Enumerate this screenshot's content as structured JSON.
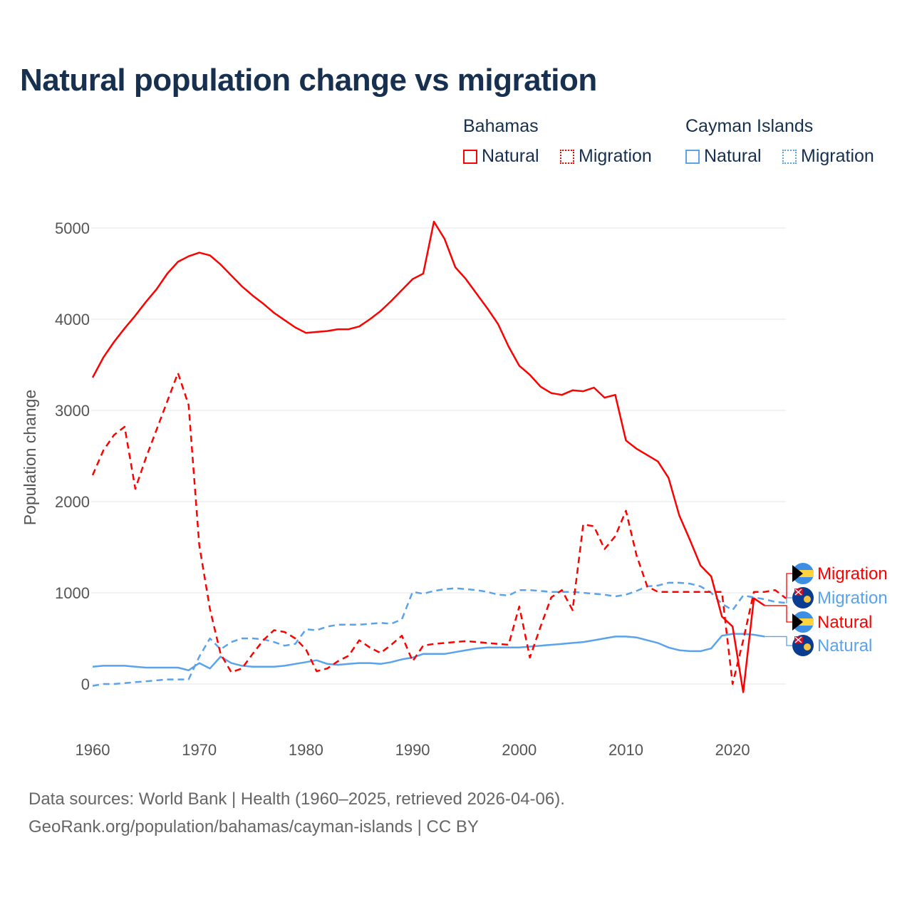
{
  "title": "Natural population change vs migration",
  "legend": {
    "groups": [
      {
        "name": "Bahamas",
        "items": [
          "Natural",
          "Migration"
        ],
        "color": "#ff0000"
      },
      {
        "name": "Cayman Islands",
        "items": [
          "Natural",
          "Migration"
        ],
        "color": "#5aa3ec"
      }
    ]
  },
  "footer": {
    "line1": "Data sources: World Bank | Health (1960–2025, retrieved 2026-04-06).",
    "line2": "GeoRank.org/population/bahamas/cayman-islands | CC BY"
  },
  "chart_data": {
    "type": "line",
    "title": "Natural population change vs migration",
    "xlabel": "",
    "ylabel": "Population change",
    "xlim": [
      1960,
      2025
    ],
    "ylim": [
      -500,
      5000
    ],
    "yticks": [
      0,
      1000,
      2000,
      3000,
      4000,
      5000
    ],
    "xticks": [
      1960,
      1970,
      1980,
      1990,
      2000,
      2010,
      2020
    ],
    "grid": true,
    "legend_position": "top-right",
    "series": [
      {
        "name": "Bahamas Natural",
        "label": "Natural",
        "country": "Bahamas",
        "color": "#ff0000",
        "dash": "solid",
        "start": 1960,
        "values": [
          3360,
          3580,
          3750,
          3900,
          4040,
          4190,
          4330,
          4500,
          4630,
          4690,
          4730,
          4700,
          4600,
          4480,
          4360,
          4260,
          4170,
          4070,
          3990,
          3910,
          3850,
          3860,
          3870,
          3890,
          3890,
          3920,
          4000,
          4090,
          4200,
          4320,
          4440,
          4500,
          5070,
          4880,
          4570,
          4440,
          4280,
          4120,
          3950,
          3700,
          3490,
          3390,
          3260,
          3190,
          3170,
          3220,
          3210,
          3250,
          3140,
          3170,
          2670,
          2580,
          2510,
          2440,
          2260,
          1850,
          1580,
          1300,
          1180,
          740,
          630,
          -90,
          940,
          860
        ]
      },
      {
        "name": "Bahamas Migration",
        "label": "Migration",
        "country": "Bahamas",
        "color": "#ff0000",
        "dash": "dashed",
        "start": 1960,
        "values": [
          2290,
          2560,
          2730,
          2820,
          2140,
          2480,
          2790,
          3100,
          3410,
          3060,
          1520,
          820,
          330,
          130,
          170,
          330,
          480,
          590,
          570,
          500,
          380,
          140,
          170,
          250,
          310,
          480,
          400,
          340,
          430,
          530,
          250,
          420,
          440,
          450,
          460,
          470,
          460,
          450,
          440,
          430,
          850,
          290,
          630,
          950,
          1030,
          810,
          1750,
          1730,
          1480,
          1620,
          1900,
          1410,
          1070,
          1010,
          1010,
          1010,
          1010,
          1010,
          1010,
          1010,
          0,
          480,
          1010,
          1010,
          1030,
          940
        ]
      },
      {
        "name": "Cayman Islands Natural",
        "label": "Natural",
        "country": "Cayman Islands",
        "color": "#5aa3ec",
        "dash": "solid",
        "start": 1960,
        "values": [
          190,
          200,
          200,
          200,
          190,
          180,
          180,
          180,
          180,
          150,
          230,
          170,
          300,
          230,
          200,
          190,
          190,
          190,
          200,
          220,
          240,
          260,
          220,
          210,
          220,
          230,
          230,
          220,
          240,
          270,
          290,
          330,
          330,
          330,
          350,
          370,
          390,
          400,
          400,
          400,
          400,
          410,
          420,
          430,
          440,
          450,
          460,
          480,
          500,
          520,
          520,
          510,
          480,
          450,
          400,
          370,
          360,
          360,
          390,
          530,
          550,
          550,
          540,
          520
        ]
      },
      {
        "name": "Cayman Islands Migration",
        "label": "Migration",
        "country": "Cayman Islands",
        "color": "#5aa3ec",
        "dash": "dashed",
        "start": 1960,
        "values": [
          -20,
          0,
          0,
          10,
          20,
          30,
          40,
          50,
          50,
          50,
          300,
          500,
          380,
          460,
          500,
          500,
          490,
          460,
          420,
          440,
          600,
          590,
          630,
          650,
          650,
          650,
          660,
          670,
          660,
          710,
          1010,
          990,
          1020,
          1040,
          1050,
          1040,
          1030,
          1010,
          980,
          970,
          1030,
          1030,
          1020,
          1010,
          1010,
          1010,
          1000,
          990,
          980,
          960,
          980,
          1020,
          1070,
          1080,
          1110,
          1110,
          1100,
          1070,
          1000,
          880,
          810,
          970,
          950,
          930,
          900,
          890
        ]
      }
    ]
  }
}
